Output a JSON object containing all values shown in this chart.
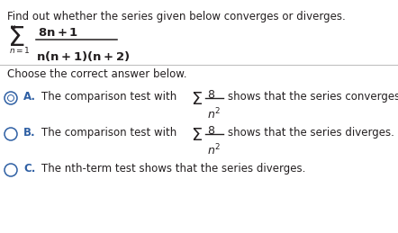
{
  "title_text": "Find out whether the series given below converges or diverges.",
  "choose_text": "Choose the correct answer below.",
  "option_A_label": "A.",
  "option_A_text": "The comparison test with",
  "option_A_end": "shows that the series converges.",
  "option_B_label": "B.",
  "option_B_text": "The comparison test with",
  "option_B_end": "shows that the series diverges.",
  "option_C_label": "C.",
  "option_C_text": "The nth-term test shows that the series diverges.",
  "bg_color": "#ffffff",
  "text_color": "#231f20",
  "label_color": "#2e5fa3",
  "figsize": [
    4.42,
    2.59
  ],
  "dpi": 100
}
